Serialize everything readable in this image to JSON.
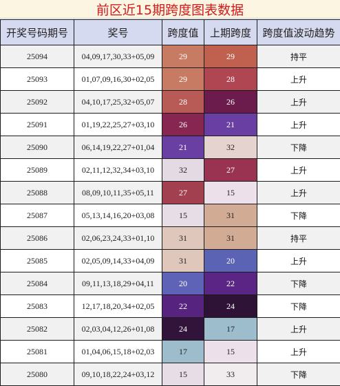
{
  "title": "前区近15期跨度图表数据",
  "headers": [
    "开奖号码期号",
    "奖号",
    "跨度值",
    "上期跨度",
    "跨度值波动趋势"
  ],
  "rows": [
    {
      "period": "25094",
      "numbers": "04,09,17,30,33+05,09",
      "span": "29",
      "prev_span": "29",
      "trend": "持平",
      "span_color": "#c67b62",
      "prev_color": "#c0614f",
      "span_text_color": "#ffffff",
      "prev_text_color": "#ffffff"
    },
    {
      "period": "25093",
      "numbers": "01,07,09,16,30+02,05",
      "span": "29",
      "prev_span": "28",
      "trend": "上升",
      "span_color": "#c67b62",
      "prev_color": "#b04652",
      "span_text_color": "#ffffff",
      "prev_text_color": "#ffffff"
    },
    {
      "period": "25092",
      "numbers": "04,10,17,25,32+05,07",
      "span": "28",
      "prev_span": "26",
      "trend": "上升",
      "span_color": "#b85a55",
      "prev_color": "#6b1c4c",
      "span_text_color": "#ffffff",
      "prev_text_color": "#ffffff"
    },
    {
      "period": "25091",
      "numbers": "01,19,22,25,27+03,10",
      "span": "26",
      "prev_span": "21",
      "trend": "上升",
      "span_color": "#872650",
      "prev_color": "#6a3fa4",
      "span_text_color": "#ffffff",
      "prev_text_color": "#ffffff"
    },
    {
      "period": "25090",
      "numbers": "06,14,19,22,27+01,04",
      "span": "21",
      "prev_span": "32",
      "trend": "下降",
      "span_color": "#6a3fa4",
      "prev_color": "#e4d3ce",
      "span_text_color": "#ffffff",
      "prev_text_color": "#222222"
    },
    {
      "period": "25089",
      "numbers": "02,11,12,32,34+03,10",
      "span": "32",
      "prev_span": "27",
      "trend": "上升",
      "span_color": "#e4dae3",
      "prev_color": "#9a3352",
      "span_text_color": "#222222",
      "prev_text_color": "#ffffff"
    },
    {
      "period": "25088",
      "numbers": "08,09,10,11,35+05,11",
      "span": "27",
      "prev_span": "15",
      "trend": "上升",
      "span_color": "#a2404f",
      "prev_color": "#ece0ea",
      "span_text_color": "#ffffff",
      "prev_text_color": "#222222"
    },
    {
      "period": "25087",
      "numbers": "05,13,14,16,20+03,08",
      "span": "15",
      "prev_span": "31",
      "trend": "下降",
      "span_color": "#e6dde6",
      "prev_color": "#d1ab93",
      "span_text_color": "#222222",
      "prev_text_color": "#222222"
    },
    {
      "period": "25086",
      "numbers": "02,06,23,24,33+01,10",
      "span": "31",
      "prev_span": "31",
      "trend": "持平",
      "span_color": "#e0c7bb",
      "prev_color": "#d1ab93",
      "span_text_color": "#222222",
      "prev_text_color": "#222222"
    },
    {
      "period": "25085",
      "numbers": "02,05,09,14,33+04,09",
      "span": "31",
      "prev_span": "20",
      "trend": "上升",
      "span_color": "#e0c7bb",
      "prev_color": "#5b63b4",
      "span_text_color": "#222222",
      "prev_text_color": "#ffffff"
    },
    {
      "period": "25084",
      "numbers": "09,11,13,18,29+04,11",
      "span": "20",
      "prev_span": "22",
      "trend": "下降",
      "span_color": "#5f63b8",
      "prev_color": "#5a2585",
      "span_text_color": "#ffffff",
      "prev_text_color": "#ffffff"
    },
    {
      "period": "25083",
      "numbers": "12,17,18,20,34+02,05",
      "span": "22",
      "prev_span": "24",
      "trend": "下降",
      "span_color": "#56237e",
      "prev_color": "#2e1336",
      "span_text_color": "#ffffff",
      "prev_text_color": "#ffffff"
    },
    {
      "period": "25082",
      "numbers": "02,03,04,12,26+01,08",
      "span": "24",
      "prev_span": "17",
      "trend": "上升",
      "span_color": "#32143a",
      "prev_color": "#9ebdcc",
      "span_text_color": "#ffffff",
      "prev_text_color": "#222222"
    },
    {
      "period": "25081",
      "numbers": "01,04,06,15,18+02,03",
      "span": "17",
      "prev_span": "15",
      "trend": "上升",
      "span_color": "#9ebdcc",
      "prev_color": "#ece0ea",
      "span_text_color": "#222222",
      "prev_text_color": "#222222"
    },
    {
      "period": "25080",
      "numbers": "09,10,18,22,24+03,12",
      "span": "15",
      "prev_span": "33",
      "trend": "下降",
      "span_color": "#e6dde6",
      "prev_color": "#f1ecee",
      "span_text_color": "#222222",
      "prev_text_color": "#222222"
    }
  ]
}
